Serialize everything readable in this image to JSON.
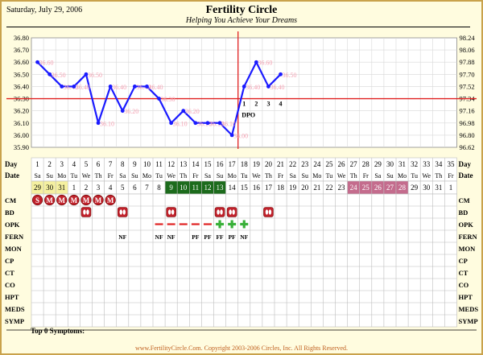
{
  "header": {
    "date": "Saturday, July 29, 2006",
    "title": "Fertility Circle",
    "subtitle": "Helping You Achieve Your Dreams"
  },
  "footer": {
    "copyright": "www.FertilityCircle.Com. Copyright 2003-2006 Circles, Inc. All Rights Reserved.",
    "symptoms_label": "Top 0 Symptoms:"
  },
  "colors": {
    "line": "#1a1aff",
    "temp_label": "#f4a2b3",
    "crosshair": "#e02020",
    "grid_temp": "#d8d8d8",
    "table_grid": "#bdbdbd",
    "date_yellow": "#f5f0a0",
    "date_green": "#1c6b1c",
    "date_pink": "#c46c8d",
    "cm_icon": "#c0202a",
    "opk_plus": "#39b039",
    "opk_dash": "#e02020",
    "border": "#c9a24c",
    "background": "#fffcdf"
  },
  "icons": {
    "cm": "circled-s-m-icon",
    "bd": "footprints-icon",
    "opk_positive": "green-plus-icon",
    "opk_negative": "red-dash-icon"
  },
  "chart_data": {
    "type": "line",
    "title": "Fertility Circle",
    "ylim": [
      35.9,
      36.8
    ],
    "yticks_c": [
      "36.80",
      "36.70",
      "36.60",
      "36.50",
      "36.40",
      "36.30",
      "36.20",
      "36.10",
      "36.00",
      "35.90"
    ],
    "yticks_f": [
      "98.24",
      "98.06",
      "97.88",
      "97.70",
      "97.52",
      "97.34",
      "97.16",
      "96.98",
      "96.80",
      "96.62"
    ],
    "coverline": 36.3,
    "ovulation_day": 17,
    "dpo_label": "DPO",
    "dpo": [
      {
        "day": 18,
        "label": "1"
      },
      {
        "day": 19,
        "label": "2"
      },
      {
        "day": 20,
        "label": "3"
      },
      {
        "day": 21,
        "label": "4"
      }
    ],
    "series": [
      {
        "x": [
          1,
          2,
          3,
          4,
          5,
          6,
          7,
          8,
          9,
          10,
          11,
          12,
          13,
          14,
          15,
          16,
          17,
          18,
          19,
          20,
          21
        ],
        "values": [
          36.6,
          36.5,
          36.4,
          36.4,
          36.5,
          36.1,
          36.4,
          36.2,
          36.4,
          36.4,
          36.3,
          36.1,
          36.2,
          36.1,
          36.1,
          36.1,
          36.0,
          36.4,
          36.6,
          36.4,
          36.5
        ],
        "labels": [
          "36.60",
          "36.50",
          "36.40",
          "36.40",
          "36.50",
          "36.10",
          "36.40",
          "36.20",
          "36.40",
          "36.40",
          "36.30",
          "36.10",
          "36.20",
          "36.10",
          "36.10",
          "36.10",
          "36.00",
          "36.40",
          "36.60",
          "36.40",
          "36.50"
        ]
      }
    ],
    "days": [
      "1",
      "2",
      "3",
      "4",
      "5",
      "6",
      "7",
      "8",
      "9",
      "10",
      "11",
      "12",
      "13",
      "14",
      "15",
      "16",
      "17",
      "18",
      "19",
      "20",
      "21",
      "22",
      "23",
      "24",
      "25",
      "26",
      "27",
      "28",
      "29",
      "30",
      "31",
      "32",
      "33",
      "34",
      "35"
    ],
    "weekdays": [
      "Sa",
      "Su",
      "Mo",
      "Tu",
      "We",
      "Th",
      "Fr",
      "Sa",
      "Su",
      "Mo",
      "Tu",
      "We",
      "Th",
      "Fr",
      "Sa",
      "Su",
      "Mo",
      "Tu",
      "We",
      "Th",
      "Fr",
      "Sa",
      "Su",
      "Mo",
      "Tu",
      "We",
      "Th",
      "Fr",
      "Sa",
      "Su",
      "Mo",
      "Tu",
      "We",
      "Th",
      "Fr"
    ],
    "dates": [
      "29",
      "30",
      "31",
      "1",
      "2",
      "3",
      "4",
      "5",
      "6",
      "7",
      "8",
      "9",
      "10",
      "11",
      "12",
      "13",
      "14",
      "15",
      "16",
      "17",
      "18",
      "19",
      "20",
      "21",
      "22",
      "23",
      "24",
      "25",
      "26",
      "27",
      "28",
      "29",
      "30",
      "31",
      "1"
    ],
    "date_colors": [
      "yellow",
      "yellow",
      "yellow",
      "none",
      "none",
      "none",
      "none",
      "none",
      "none",
      "none",
      "none",
      "green",
      "green",
      "green",
      "green",
      "green",
      "none",
      "none",
      "none",
      "none",
      "none",
      "none",
      "none",
      "none",
      "none",
      "none",
      "pink",
      "pink",
      "pink",
      "pink",
      "pink",
      "none",
      "none",
      "none",
      "none"
    ],
    "row_labels": [
      "CM",
      "BD",
      "OPK",
      "FERN",
      "MON",
      "CP",
      "CT",
      "CO",
      "HPT",
      "MEDS",
      "SYMP"
    ],
    "day_label": "Day",
    "date_label": "Date",
    "cm_days": [
      1,
      2,
      3,
      4,
      5,
      6,
      7
    ],
    "bd_days": [
      5,
      8,
      12,
      16,
      17,
      20
    ],
    "opk_negative_days": [
      11,
      12,
      13,
      14,
      15
    ],
    "opk_positive_days": [
      16,
      17,
      18
    ],
    "fern": [
      {
        "day": 8,
        "label": "NF"
      },
      {
        "day": 11,
        "label": "NF"
      },
      {
        "day": 12,
        "label": "NF"
      },
      {
        "day": 14,
        "label": "PF"
      },
      {
        "day": 15,
        "label": "PF"
      },
      {
        "day": 16,
        "label": "FF"
      },
      {
        "day": 17,
        "label": "PF"
      },
      {
        "day": 18,
        "label": "NF"
      }
    ]
  }
}
